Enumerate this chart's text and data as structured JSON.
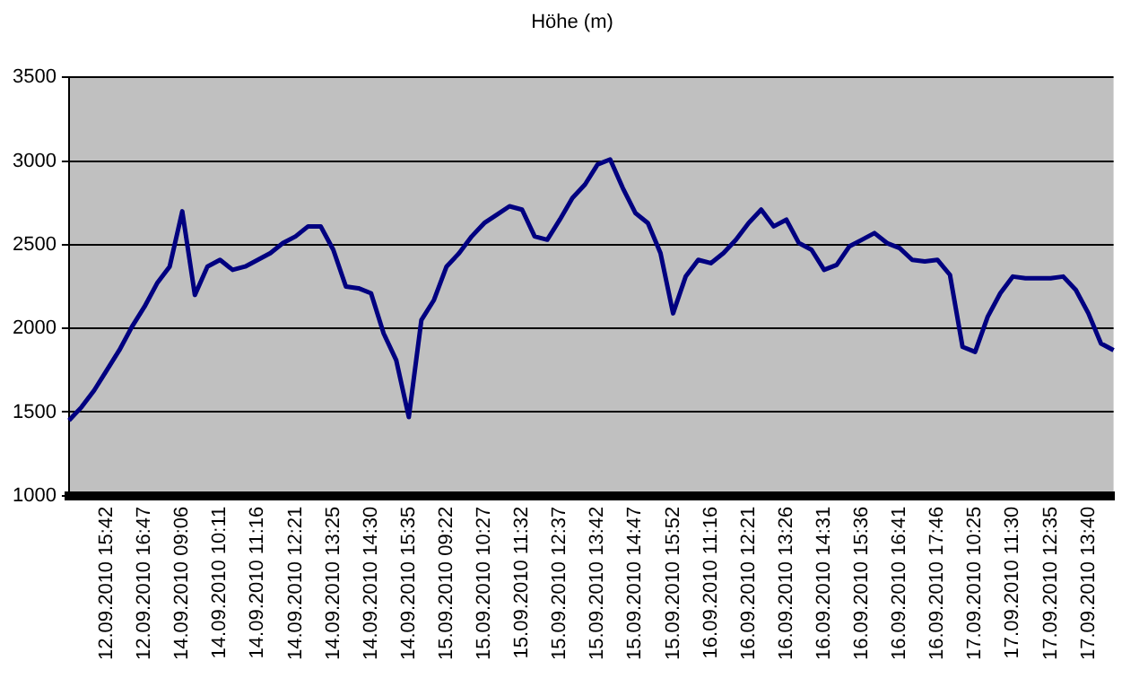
{
  "chart_data": {
    "type": "line",
    "title": "Höhe (m)",
    "categories": [
      null,
      null,
      null,
      "12.09.2010 15:42",
      null,
      null,
      "12.09.2010 16:47",
      null,
      null,
      "14.09.2010 09:06",
      null,
      null,
      "14.09.2010 10:11",
      null,
      null,
      "14.09.2010 11:16",
      null,
      null,
      "14.09.2010 12:21",
      null,
      null,
      "14.09.2010 13:25",
      null,
      null,
      "14.09.2010 14:30",
      null,
      null,
      "14.09.2010 15:35",
      null,
      null,
      "15.09.2010 09:22",
      null,
      null,
      "15.09.2010 10:27",
      null,
      null,
      "15.09.2010 11:32",
      null,
      null,
      "15.09.2010 12:37",
      null,
      null,
      "15.09.2010 13:42",
      null,
      null,
      "15.09.2010 14:47",
      null,
      null,
      "15.09.2010 15:52",
      null,
      null,
      "16.09.2010 11:16",
      null,
      null,
      "16.09.2010 12:21",
      null,
      null,
      "16.09.2010 13:26",
      null,
      null,
      "16.09.2010 14:31",
      null,
      null,
      "16.09.2010 15:36",
      null,
      null,
      "16.09.2010 16:41",
      null,
      null,
      "16.09.2010 17:46",
      null,
      null,
      "17.09.2010 10:25",
      null,
      null,
      "17.09.2010 11:30",
      null,
      null,
      "17.09.2010 12:35",
      null,
      null,
      "17.09.2010 13:40",
      null,
      null
    ],
    "series": [
      {
        "color": "#000080",
        "values": [
          1450,
          1530,
          1630,
          1750,
          1870,
          2010,
          2130,
          2270,
          2370,
          2700,
          2200,
          2370,
          2410,
          2350,
          2370,
          2410,
          2450,
          2510,
          2550,
          2610,
          2610,
          2470,
          2250,
          2240,
          2210,
          1970,
          1810,
          1470,
          2050,
          2170,
          2370,
          2450,
          2550,
          2630,
          2680,
          2730,
          2710,
          2550,
          2530,
          2650,
          2780,
          2860,
          2980,
          3010,
          2840,
          2690,
          2630,
          2450,
          2090,
          2310,
          2410,
          2390,
          2450,
          2530,
          2630,
          2710,
          2610,
          2650,
          2510,
          2470,
          2350,
          2380,
          2490,
          2530,
          2570,
          2510,
          2480,
          2410,
          2400,
          2410,
          2320,
          1890,
          1860,
          2070,
          2210,
          2310,
          2300,
          2300,
          2300,
          2310,
          2230,
          2090,
          1910,
          1870
        ]
      }
    ],
    "ylim": [
      1000,
      3500
    ],
    "yticks": [
      1000,
      1500,
      2000,
      2500,
      3000,
      3500
    ],
    "grid": "y",
    "legend": false,
    "marker": "none",
    "line_style": "solid"
  }
}
